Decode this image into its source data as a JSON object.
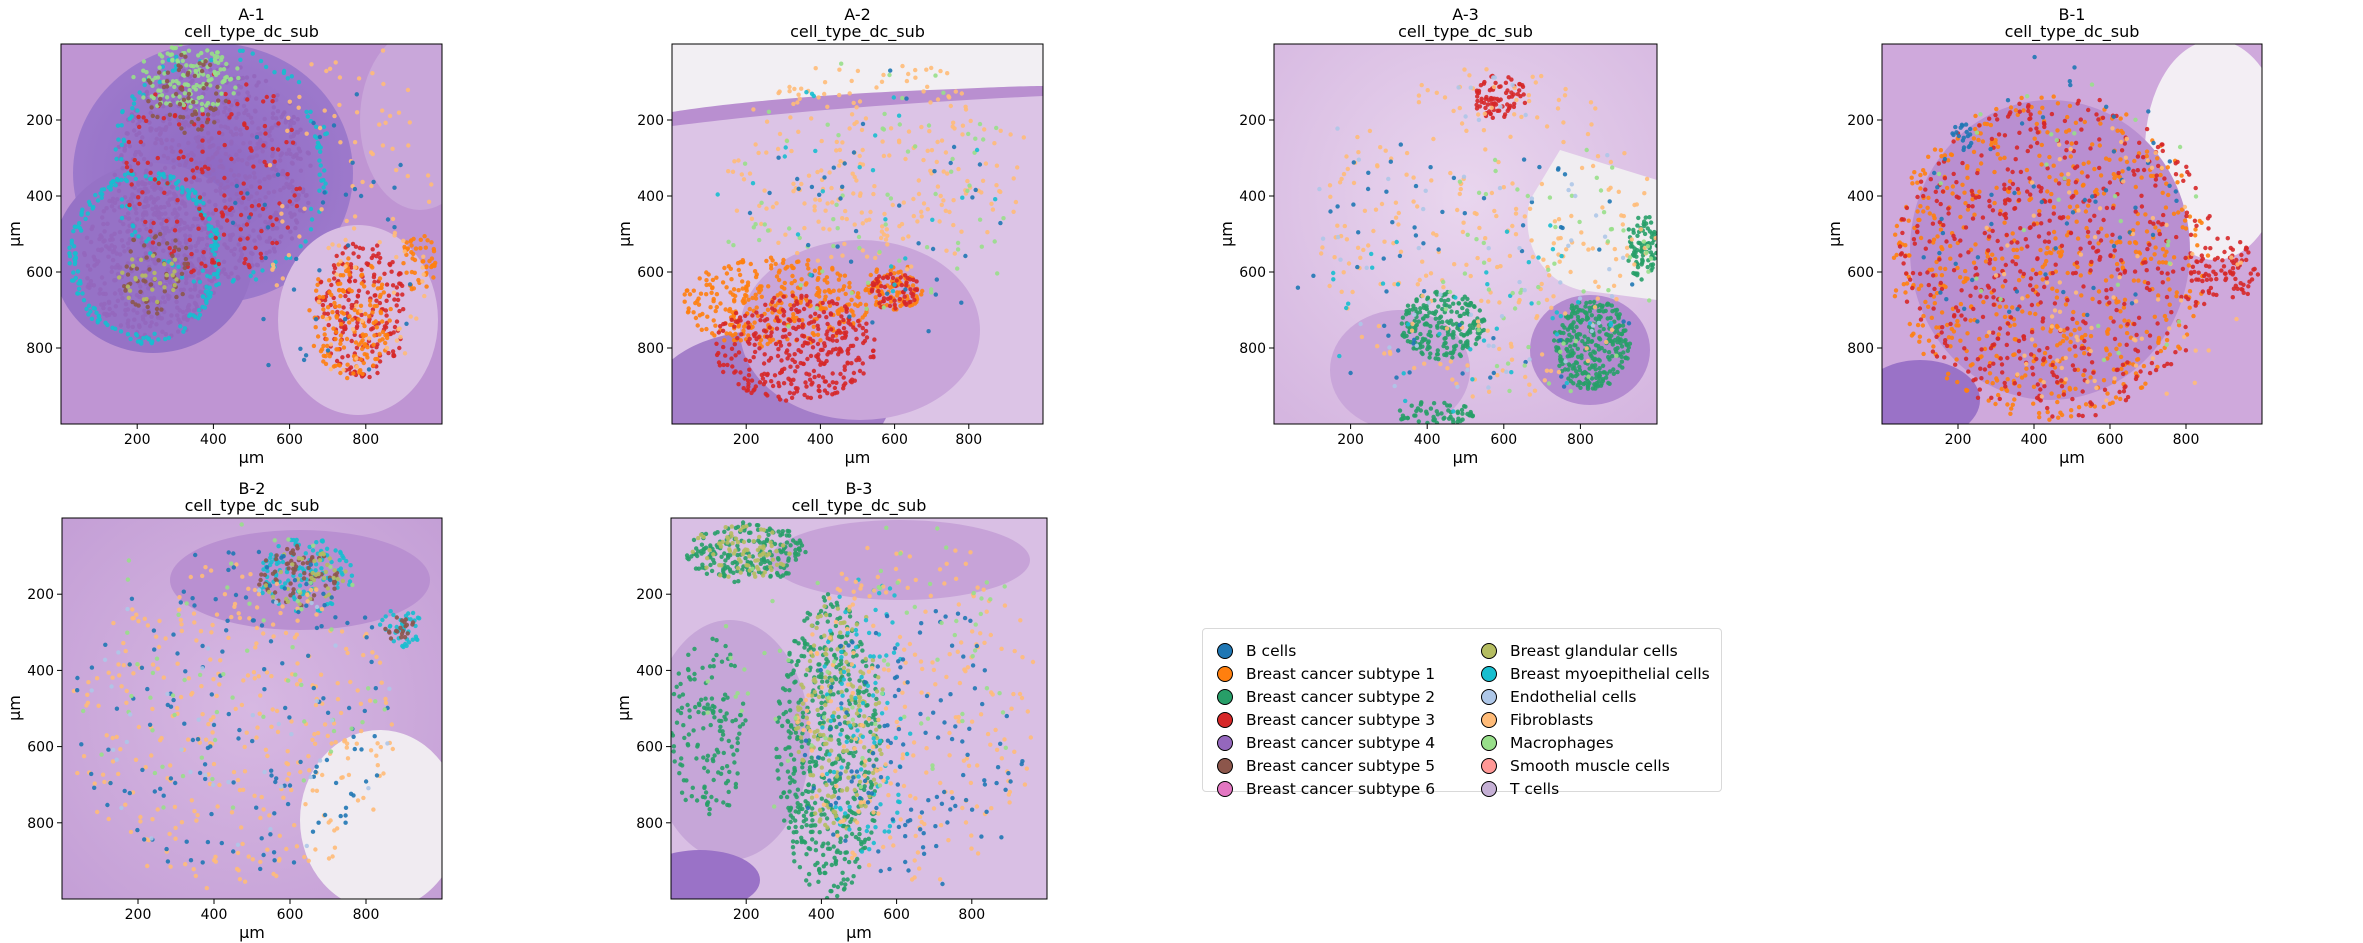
{
  "axis_unit": "µm",
  "chart_data": [
    {
      "type": "scatter",
      "title": "A-1",
      "subtitle": "cell_type_dc_sub",
      "xlabel": "µm",
      "ylabel": "µm",
      "xlim": [
        0,
        1000
      ],
      "ylim": [
        1000,
        0
      ],
      "xticks": [
        200,
        400,
        600,
        800
      ],
      "yticks": [
        200,
        400,
        600,
        800
      ],
      "clusters": [
        {
          "category": "Breast cancer subtype 4",
          "center": [
            400,
            340
          ],
          "radius": [
            260,
            290
          ],
          "count": 700
        },
        {
          "category": "Breast cancer subtype 4",
          "center": [
            240,
            570
          ],
          "radius": [
            180,
            210
          ],
          "count": 420
        },
        {
          "category": "Breast myoepithelial cells",
          "center": [
            220,
            560
          ],
          "radius": [
            195,
            225
          ],
          "count": 200,
          "ring": true
        },
        {
          "category": "Breast myoepithelial cells",
          "center": [
            420,
            320
          ],
          "radius": [
            285,
            310
          ],
          "count": 120,
          "ring": true
        },
        {
          "category": "Breast cancer subtype 3",
          "center": [
            400,
            340
          ],
          "radius": [
            240,
            270
          ],
          "count": 160
        },
        {
          "category": "Breast cancer subtype 3",
          "center": [
            790,
            700
          ],
          "radius": [
            120,
            180
          ],
          "count": 200
        },
        {
          "category": "Breast cancer subtype 1",
          "center": [
            760,
            720
          ],
          "radius": [
            110,
            160
          ],
          "count": 160
        },
        {
          "category": "Breast cancer subtype 1",
          "center": [
            940,
            580
          ],
          "radius": [
            50,
            80
          ],
          "count": 50
        },
        {
          "category": "Macrophages",
          "center": [
            330,
            90
          ],
          "radius": [
            140,
            90
          ],
          "count": 140
        },
        {
          "category": "Breast cancer subtype 5",
          "center": [
            330,
            130
          ],
          "radius": [
            110,
            110
          ],
          "count": 60
        },
        {
          "category": "Breast cancer subtype 5",
          "center": [
            250,
            600
          ],
          "radius": [
            100,
            110
          ],
          "count": 60
        },
        {
          "category": "Breast glandular cells",
          "center": [
            240,
            620
          ],
          "radius": [
            90,
            70
          ],
          "count": 30
        },
        {
          "category": "Fibroblasts",
          "center": [
            760,
            450
          ],
          "radius": [
            220,
            480
          ],
          "count": 100
        },
        {
          "category": "B cells",
          "center": [
            700,
            520
          ],
          "radius": [
            260,
            420
          ],
          "count": 40
        }
      ]
    },
    {
      "type": "scatter",
      "title": "A-2",
      "subtitle": "cell_type_dc_sub",
      "xlabel": "µm",
      "ylabel": "µm",
      "xlim": [
        0,
        1000
      ],
      "ylim": [
        1000,
        0
      ],
      "xticks": [
        200,
        400,
        600,
        800
      ],
      "yticks": [
        200,
        400,
        600,
        800
      ],
      "clusters": [
        {
          "category": "Breast cancer subtype 1",
          "center": [
            280,
            680
          ],
          "radius": [
            250,
            120
          ],
          "count": 320
        },
        {
          "category": "Breast cancer subtype 3",
          "center": [
            330,
            800
          ],
          "radius": [
            220,
            140
          ],
          "count": 340
        },
        {
          "category": "Breast cancer subtype 1",
          "center": [
            600,
            640
          ],
          "radius": [
            80,
            60
          ],
          "count": 90
        },
        {
          "category": "Breast cancer subtype 3",
          "center": [
            600,
            650
          ],
          "radius": [
            70,
            50
          ],
          "count": 60
        },
        {
          "category": "Fibroblasts",
          "center": [
            550,
            320
          ],
          "radius": [
            420,
            280
          ],
          "count": 240
        },
        {
          "category": "Macrophages",
          "center": [
            520,
            420
          ],
          "radius": [
            420,
            380
          ],
          "count": 70
        },
        {
          "category": "B cells",
          "center": [
            560,
            420
          ],
          "radius": [
            400,
            360
          ],
          "count": 40
        },
        {
          "category": "Breast myoepithelial cells",
          "center": [
            500,
            400
          ],
          "radius": [
            400,
            300
          ],
          "count": 25
        }
      ]
    },
    {
      "type": "scatter",
      "title": "A-3",
      "subtitle": "cell_type_dc_sub",
      "xlabel": "µm",
      "ylabel": "µm",
      "xlim": [
        0,
        1000
      ],
      "ylim": [
        1000,
        0
      ],
      "xticks": [
        200,
        400,
        600,
        800
      ],
      "yticks": [
        200,
        400,
        600,
        800
      ],
      "clusters": [
        {
          "category": "Breast cancer subtype 2",
          "center": [
            830,
            790
          ],
          "radius": [
            100,
            120
          ],
          "count": 300
        },
        {
          "category": "Breast cancer subtype 2",
          "center": [
            440,
            740
          ],
          "radius": [
            110,
            90
          ],
          "count": 220
        },
        {
          "category": "Breast cancer subtype 2",
          "center": [
            960,
            530
          ],
          "radius": [
            40,
            90
          ],
          "count": 80
        },
        {
          "category": "Breast cancer subtype 2",
          "center": [
            420,
            970
          ],
          "radius": [
            110,
            30
          ],
          "count": 60
        },
        {
          "category": "Breast cancer subtype 3",
          "center": [
            590,
            140
          ],
          "radius": [
            70,
            60
          ],
          "count": 80
        },
        {
          "category": "Fibroblasts",
          "center": [
            560,
            500
          ],
          "radius": [
            440,
            440
          ],
          "count": 260
        },
        {
          "category": "B cells",
          "center": [
            500,
            600
          ],
          "radius": [
            460,
            380
          ],
          "count": 60
        },
        {
          "category": "Breast myoepithelial cells",
          "center": [
            500,
            700
          ],
          "radius": [
            400,
            280
          ],
          "count": 40
        },
        {
          "category": "Macrophages",
          "center": [
            700,
            600
          ],
          "radius": [
            300,
            380
          ],
          "count": 60
        },
        {
          "category": "Endothelial cells",
          "center": [
            500,
            500
          ],
          "radius": [
            450,
            450
          ],
          "count": 60
        }
      ]
    },
    {
      "type": "scatter",
      "title": "B-1",
      "subtitle": "cell_type_dc_sub",
      "xlabel": "µm",
      "ylabel": "µm",
      "xlim": [
        0,
        1000
      ],
      "ylim": [
        1000,
        0
      ],
      "xticks": [
        200,
        400,
        600,
        800
      ],
      "yticks": [
        200,
        400,
        600,
        800
      ],
      "clusters": [
        {
          "category": "Breast cancer subtype 1",
          "center": [
            440,
            560
          ],
          "radius": [
            420,
            430
          ],
          "count": 650
        },
        {
          "category": "Breast cancer subtype 3",
          "center": [
            460,
            560
          ],
          "radius": [
            420,
            430
          ],
          "count": 520
        },
        {
          "category": "Breast cancer subtype 3",
          "center": [
            900,
            600
          ],
          "radius": [
            90,
            90
          ],
          "count": 80
        },
        {
          "category": "B cells",
          "center": [
            420,
            400
          ],
          "radius": [
            360,
            380
          ],
          "count": 60
        },
        {
          "category": "B cells",
          "center": [
            210,
            240
          ],
          "radius": [
            30,
            40
          ],
          "count": 20
        },
        {
          "category": "Fibroblasts",
          "center": [
            600,
            600
          ],
          "radius": [
            360,
            380
          ],
          "count": 80
        },
        {
          "category": "Macrophages",
          "center": [
            500,
            500
          ],
          "radius": [
            400,
            400
          ],
          "count": 30
        }
      ]
    },
    {
      "type": "scatter",
      "title": "B-2",
      "subtitle": "cell_type_dc_sub",
      "xlabel": "µm",
      "ylabel": "µm",
      "xlim": [
        0,
        1000
      ],
      "ylim": [
        1000,
        0
      ],
      "xticks": [
        200,
        400,
        600,
        800
      ],
      "yticks": [
        200,
        400,
        600,
        800
      ],
      "clusters": [
        {
          "category": "Breast myoepithelial cells",
          "center": [
            640,
            150
          ],
          "radius": [
            130,
            100
          ],
          "count": 120
        },
        {
          "category": "Breast cancer subtype 5",
          "center": [
            620,
            150
          ],
          "radius": [
            110,
            80
          ],
          "count": 70
        },
        {
          "category": "Breast glandular cells",
          "center": [
            640,
            160
          ],
          "radius": [
            110,
            80
          ],
          "count": 40
        },
        {
          "category": "Breast myoepithelial cells",
          "center": [
            890,
            290
          ],
          "radius": [
            60,
            50
          ],
          "count": 40
        },
        {
          "category": "Breast cancer subtype 5",
          "center": [
            890,
            290
          ],
          "radius": [
            40,
            35
          ],
          "count": 20
        },
        {
          "category": "Fibroblasts",
          "center": [
            450,
            550
          ],
          "radius": [
            430,
            430
          ],
          "count": 320
        },
        {
          "category": "B cells",
          "center": [
            450,
            500
          ],
          "radius": [
            420,
            440
          ],
          "count": 160
        },
        {
          "category": "Macrophages",
          "center": [
            450,
            400
          ],
          "radius": [
            420,
            400
          ],
          "count": 60
        },
        {
          "category": "Endothelial cells",
          "center": [
            450,
            500
          ],
          "radius": [
            420,
            420
          ],
          "count": 40
        }
      ]
    },
    {
      "type": "scatter",
      "title": "B-3",
      "subtitle": "cell_type_dc_sub",
      "xlabel": "µm",
      "ylabel": "µm",
      "xlim": [
        0,
        1000
      ],
      "ylim": [
        1000,
        0
      ],
      "xticks": [
        200,
        400,
        600,
        800
      ],
      "yticks": [
        200,
        400,
        600,
        800
      ],
      "clusters": [
        {
          "category": "Breast cancer subtype 2",
          "center": [
            420,
            600
          ],
          "radius": [
            140,
            400
          ],
          "count": 520
        },
        {
          "category": "Breast cancer subtype 2",
          "center": [
            200,
            90
          ],
          "radius": [
            160,
            80
          ],
          "count": 200
        },
        {
          "category": "Breast cancer subtype 2",
          "center": [
            100,
            550
          ],
          "radius": [
            100,
            250
          ],
          "count": 150
        },
        {
          "category": "Breast glandular cells",
          "center": [
            450,
            520
          ],
          "radius": [
            120,
            320
          ],
          "count": 180
        },
        {
          "category": "Breast glandular cells",
          "center": [
            180,
            90
          ],
          "radius": [
            140,
            70
          ],
          "count": 80
        },
        {
          "category": "Breast myoepithelial cells",
          "center": [
            520,
            500
          ],
          "radius": [
            120,
            380
          ],
          "count": 100
        },
        {
          "category": "Fibroblasts",
          "center": [
            650,
            500
          ],
          "radius": [
            330,
            460
          ],
          "count": 220
        },
        {
          "category": "B cells",
          "center": [
            650,
            600
          ],
          "radius": [
            320,
            380
          ],
          "count": 130
        },
        {
          "category": "Macrophages",
          "center": [
            500,
            400
          ],
          "radius": [
            460,
            420
          ],
          "count": 70
        }
      ]
    }
  ],
  "legend": {
    "columns": [
      [
        {
          "label": "B cells",
          "color": "#1f77b4"
        },
        {
          "label": "Breast cancer subtype 1",
          "color": "#ff7f0e"
        },
        {
          "label": "Breast cancer subtype 2",
          "color": "#279e68"
        },
        {
          "label": "Breast cancer subtype 3",
          "color": "#d62728"
        },
        {
          "label": "Breast cancer subtype 4",
          "color": "#9467bd"
        },
        {
          "label": "Breast cancer subtype 5",
          "color": "#8c564b"
        },
        {
          "label": "Breast cancer subtype 6",
          "color": "#e377c2"
        }
      ],
      [
        {
          "label": "Breast glandular cells",
          "color": "#b5bd61"
        },
        {
          "label": "Breast myoepithelial cells",
          "color": "#17becf"
        },
        {
          "label": "Endothelial cells",
          "color": "#aec7e8"
        },
        {
          "label": "Fibroblasts",
          "color": "#ffbb78"
        },
        {
          "label": "Macrophages",
          "color": "#98df8a"
        },
        {
          "label": "Smooth muscle cells",
          "color": "#ff9896"
        },
        {
          "label": "T cells",
          "color": "#c5b0d5"
        }
      ]
    ]
  }
}
